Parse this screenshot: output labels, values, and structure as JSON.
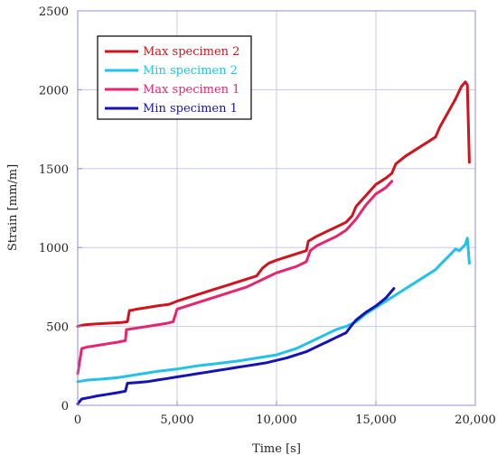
{
  "chart_data": {
    "type": "line",
    "xlabel": "Time [s]",
    "ylabel": "Strain [mm/m]",
    "xlim": [
      0,
      20000
    ],
    "ylim": [
      0,
      2500
    ],
    "xticks": [
      0,
      5000,
      10000,
      15000,
      20000
    ],
    "xtick_labels": [
      "0",
      "5,000",
      "10,000",
      "15,000",
      "20,000"
    ],
    "yticks": [
      0,
      500,
      1000,
      1500,
      2000,
      2500
    ],
    "ytick_labels": [
      "0",
      "500",
      "1000",
      "1500",
      "2000",
      "2500"
    ],
    "grid": true,
    "legend_position": "top-left",
    "series": [
      {
        "name": "Max specimen 2",
        "color": "#d0141e",
        "x": [
          0,
          300,
          800,
          1500,
          2200,
          2500,
          2600,
          3000,
          3500,
          4000,
          4600,
          5000,
          5500,
          6000,
          6500,
          7000,
          7500,
          8000,
          8500,
          9000,
          9300,
          9600,
          10000,
          10500,
          11000,
          11500,
          11600,
          12000,
          12500,
          13000,
          13500,
          13800,
          14000,
          14500,
          15000,
          15500,
          15800,
          16000,
          16500,
          17000,
          17500,
          18000,
          18200,
          18600,
          19000,
          19300,
          19500,
          19600,
          19700
        ],
        "y": [
          500,
          510,
          515,
          520,
          525,
          530,
          600,
          610,
          620,
          630,
          640,
          660,
          680,
          700,
          720,
          740,
          760,
          780,
          800,
          820,
          870,
          900,
          920,
          940,
          960,
          980,
          1040,
          1070,
          1100,
          1130,
          1160,
          1200,
          1260,
          1330,
          1400,
          1440,
          1470,
          1530,
          1580,
          1620,
          1660,
          1700,
          1760,
          1850,
          1940,
          2020,
          2050,
          2030,
          1540
        ]
      },
      {
        "name": "Min specimen 2",
        "color": "#22c2e8",
        "x": [
          0,
          500,
          1000,
          2000,
          3000,
          4000,
          5000,
          6000,
          7000,
          8000,
          9000,
          10000,
          10500,
          11000,
          11500,
          12000,
          12500,
          13000,
          13500,
          14000,
          14500,
          15000,
          15500,
          16000,
          16500,
          17000,
          17500,
          18000,
          18300,
          18700,
          19000,
          19200,
          19500,
          19600,
          19700
        ],
        "y": [
          150,
          160,
          165,
          175,
          195,
          215,
          230,
          250,
          265,
          280,
          300,
          320,
          340,
          360,
          390,
          420,
          450,
          480,
          500,
          530,
          580,
          620,
          660,
          700,
          740,
          780,
          820,
          860,
          900,
          950,
          990,
          980,
          1020,
          1060,
          900
        ]
      },
      {
        "name": "Max specimen 1",
        "color": "#e8246e",
        "x": [
          0,
          200,
          500,
          1000,
          1500,
          2000,
          2400,
          2450,
          3000,
          3500,
          4000,
          4500,
          4800,
          5000,
          5500,
          6000,
          6500,
          7000,
          7500,
          8000,
          8500,
          9000,
          9500,
          10000,
          10500,
          11000,
          11500,
          11700,
          12000,
          12500,
          13000,
          13500,
          14000,
          14500,
          15000,
          15500,
          15800
        ],
        "y": [
          200,
          360,
          370,
          380,
          390,
          400,
          410,
          480,
          490,
          500,
          510,
          520,
          530,
          610,
          630,
          650,
          670,
          690,
          710,
          730,
          750,
          780,
          810,
          840,
          860,
          880,
          910,
          980,
          1010,
          1040,
          1070,
          1110,
          1180,
          1270,
          1340,
          1380,
          1420
        ]
      },
      {
        "name": "Min specimen 1",
        "color": "#1414b4",
        "x": [
          0,
          200,
          600,
          1000,
          1500,
          2000,
          2400,
          2500,
          3000,
          3500,
          4000,
          4500,
          5000,
          5500,
          6000,
          6500,
          7000,
          7500,
          8000,
          8500,
          9000,
          9500,
          10000,
          10500,
          11000,
          11500,
          12000,
          12500,
          13000,
          13500,
          13800,
          14000,
          14500,
          15000,
          15500,
          15900
        ],
        "y": [
          10,
          40,
          50,
          60,
          70,
          80,
          90,
          140,
          145,
          150,
          160,
          170,
          180,
          190,
          200,
          210,
          220,
          230,
          240,
          250,
          260,
          270,
          285,
          300,
          320,
          340,
          370,
          400,
          430,
          460,
          510,
          540,
          590,
          630,
          680,
          740
        ]
      }
    ]
  }
}
